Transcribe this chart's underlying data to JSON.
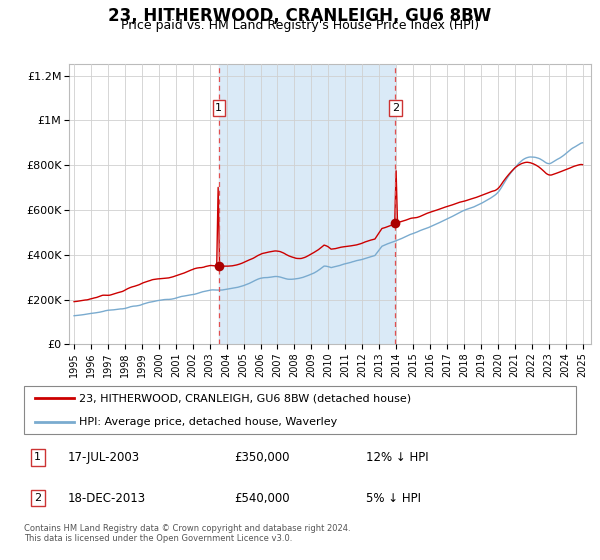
{
  "title": "23, HITHERWOOD, CRANLEIGH, GU6 8BW",
  "subtitle": "Price paid vs. HM Land Registry's House Price Index (HPI)",
  "title_fontsize": 12,
  "subtitle_fontsize": 9,
  "background_color": "#ffffff",
  "shaded_region_color": "#daeaf7",
  "grid_color": "#d0d0d0",
  "red_line_color": "#cc0000",
  "blue_line_color": "#7aabcf",
  "dashed_line_color": "#e05050",
  "marker_color": "#aa0000",
  "purchase1_x": 2003.54,
  "purchase1_y": 350000,
  "purchase2_x": 2013.96,
  "purchase2_y": 540000,
  "ylim": [
    0,
    1250000
  ],
  "xlim_start": 1994.7,
  "xlim_end": 2025.5,
  "yticks": [
    0,
    200000,
    400000,
    600000,
    800000,
    1000000,
    1200000
  ],
  "ytick_labels": [
    "£0",
    "£200K",
    "£400K",
    "£600K",
    "£800K",
    "£1M",
    "£1.2M"
  ],
  "xticks": [
    1995,
    1996,
    1997,
    1998,
    1999,
    2000,
    2001,
    2002,
    2003,
    2004,
    2005,
    2006,
    2007,
    2008,
    2009,
    2010,
    2011,
    2012,
    2013,
    2014,
    2015,
    2016,
    2017,
    2018,
    2019,
    2020,
    2021,
    2022,
    2023,
    2024,
    2025
  ],
  "legend_red_label": "23, HITHERWOOD, CRANLEIGH, GU6 8BW (detached house)",
  "legend_blue_label": "HPI: Average price, detached house, Waverley",
  "ann1_num": "1",
  "ann1_date": "17-JUL-2003",
  "ann1_price": "£350,000",
  "ann1_hpi": "12% ↓ HPI",
  "ann2_num": "2",
  "ann2_date": "18-DEC-2013",
  "ann2_price": "£540,000",
  "ann2_hpi": "5% ↓ HPI",
  "footer": "Contains HM Land Registry data © Crown copyright and database right 2024.\nThis data is licensed under the Open Government Licence v3.0."
}
